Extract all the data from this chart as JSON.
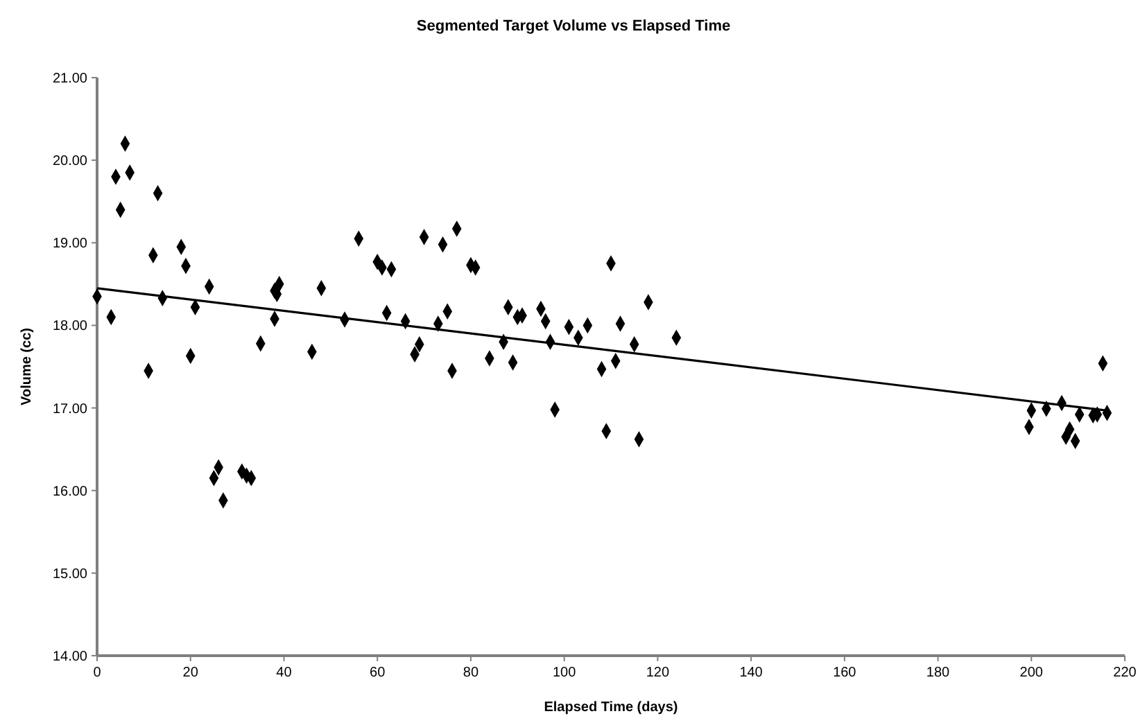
{
  "chart_data": {
    "type": "scatter",
    "title": "Segmented Target Volume vs Elapsed Time",
    "xlabel": "Elapsed Time (days)",
    "ylabel": "Volume (cc)",
    "marker": "diamond",
    "grid": false,
    "xlim": [
      0,
      220
    ],
    "xticks": [
      0,
      20,
      40,
      60,
      80,
      100,
      120,
      140,
      160,
      180,
      200,
      220
    ],
    "ylim": [
      14,
      21
    ],
    "yticks": [
      {
        "value": 14,
        "label": "14.00"
      },
      {
        "value": 15,
        "label": "15.00"
      },
      {
        "value": 16,
        "label": "16.00"
      },
      {
        "value": 17,
        "label": "17.00"
      },
      {
        "value": 18,
        "label": "18.00"
      },
      {
        "value": 19,
        "label": "19.00"
      },
      {
        "value": 20,
        "label": "20.00"
      },
      {
        "value": 21,
        "label": "21.00"
      }
    ],
    "series": [
      {
        "color": "#000000",
        "x": [
          0,
          3,
          4,
          5,
          6,
          7,
          11,
          12,
          13,
          14,
          18,
          19,
          20,
          21,
          24,
          25,
          26,
          27,
          31,
          32,
          33,
          35,
          38,
          38,
          38.5,
          39,
          46,
          48,
          53,
          56,
          60,
          61,
          63,
          62,
          66,
          68,
          69,
          70,
          73,
          74,
          75,
          76,
          77,
          80,
          81,
          84,
          87,
          88,
          89,
          90,
          91,
          95,
          96,
          97,
          98,
          101,
          103,
          105,
          108,
          109,
          110,
          111,
          112,
          115,
          116,
          118,
          124,
          199.5,
          200,
          203.2,
          206.5,
          208.2,
          207.4,
          209.4,
          210.3,
          213.2,
          214.1,
          215.3,
          216.2
        ],
        "values": [
          18.35,
          18.1,
          19.8,
          19.4,
          20.2,
          19.85,
          17.45,
          18.85,
          19.6,
          18.33,
          18.95,
          18.72,
          17.63,
          18.22,
          18.47,
          16.15,
          16.28,
          15.88,
          16.23,
          16.18,
          16.15,
          17.78,
          18.08,
          18.42,
          18.38,
          18.5,
          17.68,
          18.45,
          18.07,
          19.05,
          18.77,
          18.7,
          18.68,
          18.15,
          18.05,
          17.65,
          17.77,
          19.07,
          18.02,
          18.98,
          18.17,
          17.45,
          19.17,
          18.73,
          18.7,
          17.6,
          17.8,
          18.22,
          17.55,
          18.1,
          18.12,
          18.2,
          18.05,
          17.8,
          16.98,
          17.98,
          17.85,
          18.0,
          17.47,
          16.72,
          18.75,
          17.57,
          18.02,
          17.77,
          16.62,
          18.28,
          17.85,
          16.77,
          16.97,
          16.99,
          17.06,
          16.74,
          16.65,
          16.6,
          16.92,
          16.91,
          16.92,
          17.54,
          16.94
        ]
      },
      {
        "type": "line",
        "marker": "none",
        "color": "#000000",
        "x": [
          0,
          216
        ],
        "values": [
          18.45,
          16.97
        ]
      }
    ]
  }
}
